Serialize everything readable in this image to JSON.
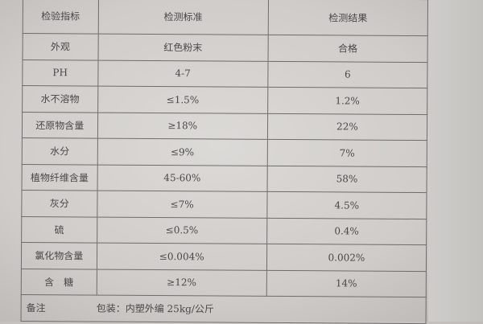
{
  "table": {
    "headers": [
      "检验指标",
      "检测标准",
      "检测结果"
    ],
    "rows": [
      [
        "外观",
        "红色粉末",
        "合格"
      ],
      [
        "PH",
        "4-7",
        "6"
      ],
      [
        "水不溶物",
        "≤1.5%",
        "1.2%"
      ],
      [
        "还原物含量",
        "≥18%",
        "22%"
      ],
      [
        "水分",
        "≤9%",
        "7%"
      ],
      [
        "植物纤维含量",
        "45-60%",
        "58%"
      ],
      [
        "灰分",
        "≤7%",
        "4.5%"
      ],
      [
        "硫",
        "≤0.5%",
        "0.4%"
      ],
      [
        "氯化物含量",
        "≤0.004%",
        "0.002%"
      ],
      [
        "含　糖",
        "≥12%",
        "14%"
      ]
    ],
    "note_label": "备注",
    "note_value": "包装：内塑外编 25kg/公斤"
  }
}
